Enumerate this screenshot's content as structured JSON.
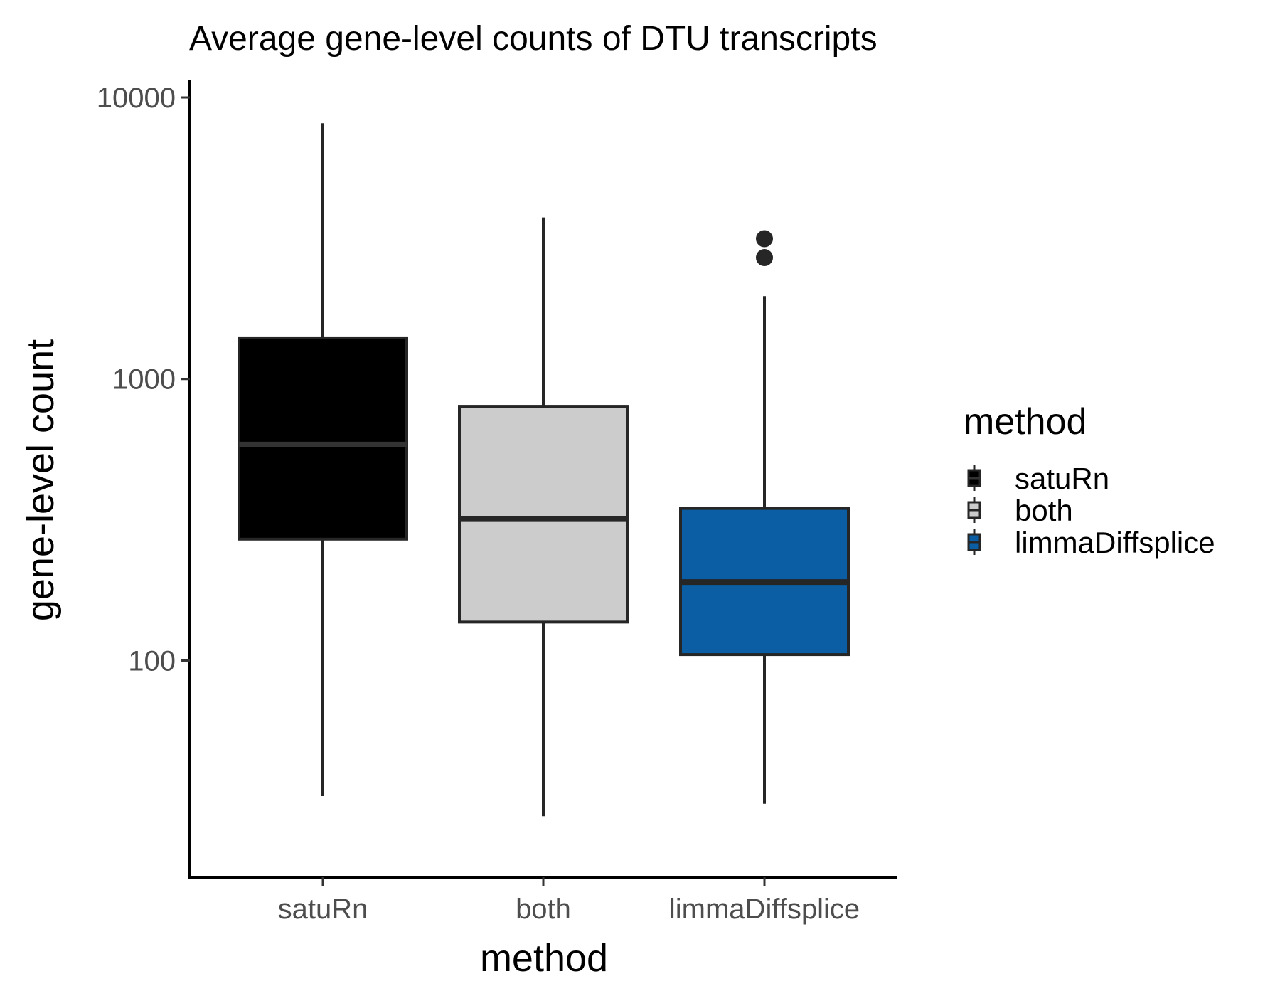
{
  "chart_data": {
    "type": "boxplot",
    "title": "Average gene-level counts of DTU transcripts",
    "xlabel": "method",
    "ylabel": "gene-level count",
    "y_scale": "log10",
    "ylim": [
      17,
      11500
    ],
    "y_ticks": [
      100,
      1000,
      10000
    ],
    "y_tick_labels": [
      "100",
      "1000",
      "10000"
    ],
    "categories": [
      "satuRn",
      "both",
      "limmaDiffsplice"
    ],
    "boxes": [
      {
        "name": "satuRn",
        "whisker_low": 33,
        "q1": 270,
        "median": 585,
        "q3": 1400,
        "whisker_high": 8100,
        "outliers": [],
        "fill": "#000000",
        "median_color": "#333333"
      },
      {
        "name": "both",
        "whisker_low": 28,
        "q1": 137,
        "median": 318,
        "q3": 800,
        "whisker_high": 3750,
        "outliers": [],
        "fill": "#cccccc",
        "median_color": "#262626"
      },
      {
        "name": "limmaDiffsplice",
        "whisker_low": 31,
        "q1": 105,
        "median": 190,
        "q3": 347,
        "whisker_high": 1970,
        "outliers": [
          2700,
          3150
        ],
        "fill": "#0b5ea3",
        "median_color": "#262626"
      }
    ],
    "grid": false,
    "legend": {
      "title": "method",
      "position": "right",
      "entries": [
        "satuRn",
        "both",
        "limmaDiffsplice"
      ]
    }
  }
}
